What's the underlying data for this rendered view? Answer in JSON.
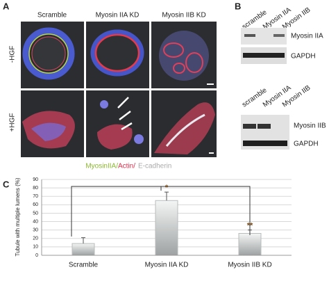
{
  "panels": {
    "a": {
      "letter": "A",
      "columns": [
        "Scramble",
        "Myosin IIA KD",
        "Myosin IIB KD"
      ],
      "rows": [
        "-HGF",
        "+HGF"
      ],
      "legend": [
        "MyosinIIA/",
        " Actin/",
        " E-cadherin"
      ]
    },
    "b": {
      "letter": "B",
      "lanes": [
        "scramble",
        "Myosin IIA",
        "Myosin IIB"
      ],
      "blot1": [
        "Myosin IIA",
        "GAPDH"
      ],
      "blot2": [
        "Myosin IIB",
        "GAPDH"
      ]
    },
    "c": {
      "letter": "C"
    }
  },
  "chart_data": {
    "type": "bar",
    "y_label": "Tubule with multiple lumens (%)",
    "categories": [
      "Scramble",
      "Myosin IIA KD",
      "Myosin IIB KD"
    ],
    "values": [
      14,
      65,
      26
    ],
    "errors": [
      7,
      10,
      4
    ],
    "significance_labels": [
      null,
      "*",
      "**"
    ],
    "ylim": [
      0,
      90
    ],
    "yticks": [
      0,
      10,
      20,
      30,
      40,
      50,
      60,
      70,
      80,
      90
    ],
    "grid": true,
    "color": "#b8bcbc"
  }
}
